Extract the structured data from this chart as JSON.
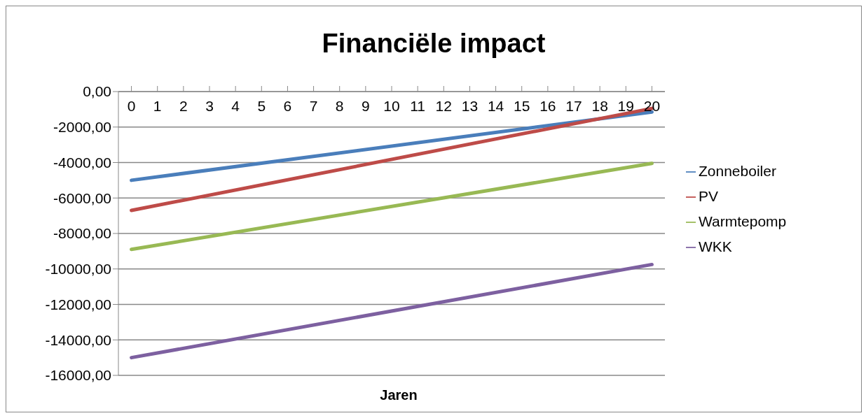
{
  "chart_data": {
    "type": "line",
    "title": "Financiële impact",
    "xlabel": "Jaren",
    "x": [
      0,
      20
    ],
    "xlim": [
      -0.5,
      20.5
    ],
    "xticks": [
      0,
      1,
      2,
      3,
      4,
      5,
      6,
      7,
      8,
      9,
      10,
      11,
      12,
      13,
      14,
      15,
      16,
      17,
      18,
      19,
      20
    ],
    "ylim": [
      -16000,
      0
    ],
    "yticks": [
      {
        "value": 0,
        "label": "0,00"
      },
      {
        "value": -2000,
        "label": "-2000,00"
      },
      {
        "value": -4000,
        "label": "-4000,00"
      },
      {
        "value": -6000,
        "label": "-6000,00"
      },
      {
        "value": -8000,
        "label": "-8000,00"
      },
      {
        "value": -10000,
        "label": "-10000,00"
      },
      {
        "value": -12000,
        "label": "-12000,00"
      },
      {
        "value": -14000,
        "label": "-14000,00"
      },
      {
        "value": -16000,
        "label": "-16000,00"
      }
    ],
    "series": [
      {
        "name": "Zonneboiler",
        "color": "#4a7ebb",
        "values": [
          -5000,
          -1150
        ]
      },
      {
        "name": "PV",
        "color": "#be4b48",
        "values": [
          -6700,
          -950
        ]
      },
      {
        "name": "Warmtepomp",
        "color": "#98b954",
        "values": [
          -8900,
          -4050
        ]
      },
      {
        "name": "WKK",
        "color": "#7d60a0",
        "values": [
          -15000,
          -9750
        ]
      }
    ],
    "grid": "y",
    "legend": "right",
    "marker": "none",
    "line_style": "solid"
  }
}
